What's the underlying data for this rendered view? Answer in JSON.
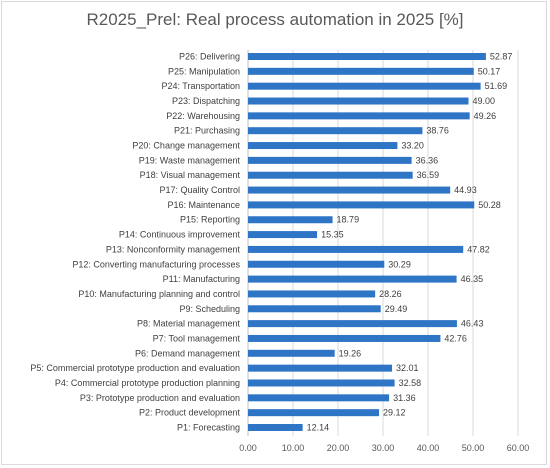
{
  "chart_data": {
    "type": "bar",
    "orientation": "horizontal",
    "title": "R2025_Prel: Real process automation in 2025  [%]",
    "categories": [
      "P26: Delivering",
      "P25: Manipulation",
      "P24: Transportation",
      "P23: Dispatching",
      "P22: Warehousing",
      "P21: Purchasing",
      "P20: Change management",
      "P19: Waste management",
      "P18: Visual management",
      "P17: Quality Control",
      "P16: Maintenance",
      "P15: Reporting",
      "P14: Continuous improvement",
      "P13: Nonconformity management",
      "P12: Converting manufacturing processes",
      "P11: Manufacturing",
      "P10: Manufacturing planning and control",
      "P9: Scheduling",
      "P8: Material management",
      "P7: Tool management",
      "P6: Demand management",
      "P5: Commercial prototype production and evaluation",
      "P4: Commercial prototype production planning",
      "P3: Prototype production and evaluation",
      "P2: Product development",
      "P1: Forecasting"
    ],
    "values": [
      52.87,
      50.17,
      51.69,
      49.0,
      49.26,
      38.76,
      33.2,
      36.36,
      36.59,
      44.93,
      50.28,
      18.79,
      15.35,
      47.82,
      30.29,
      46.35,
      28.26,
      29.49,
      46.43,
      42.76,
      19.26,
      32.01,
      32.58,
      31.36,
      29.12,
      12.14
    ],
    "value_labels": [
      "52.87",
      "50.17",
      "51.69",
      "49.00",
      "49.26",
      "38.76",
      "33.20",
      "36.36",
      "36.59",
      "44.93",
      "50.28",
      "18.79",
      "15.35",
      "47.82",
      "30.29",
      "46.35",
      "28.26",
      "29.49",
      "46.43",
      "42.76",
      "19.26",
      "32.01",
      "32.58",
      "31.36",
      "29.12",
      "12.14"
    ],
    "xlim": [
      0,
      60
    ],
    "xticks": [
      "0.00",
      "10.00",
      "20.00",
      "30.00",
      "40.00",
      "50.00",
      "60.00"
    ],
    "grid": true,
    "bar_color": "#2e75c6"
  }
}
